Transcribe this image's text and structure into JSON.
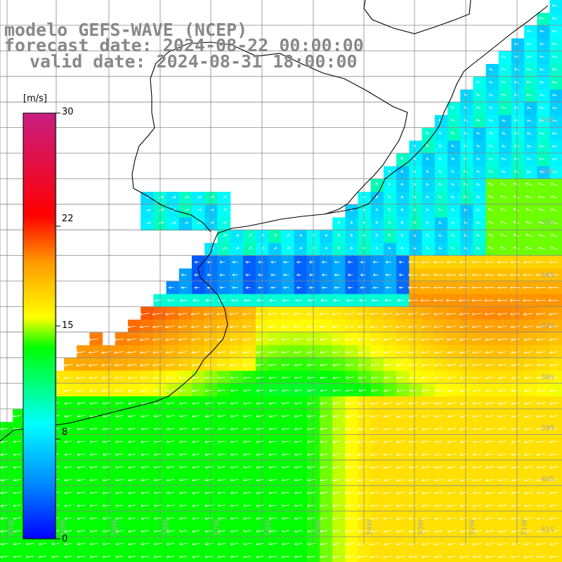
{
  "titles": {
    "line1": "modelo GEFS-WAVE (NCEP)",
    "line2": "forecast date: 2024-08-22 00:00:00",
    "line3": "valid date: 2024-08-31 18:00:00"
  },
  "colorbar": {
    "units": "[m/s]",
    "min": 0,
    "max": 30,
    "ticks": [
      "30",
      "22",
      "15",
      "8",
      "0"
    ],
    "colors": [
      "#c81e82",
      "#ff0000",
      "#ff8c00",
      "#ffff00",
      "#00ff00",
      "#00ffff",
      "#0080ff",
      "#0000ff"
    ]
  },
  "lat_labels": [
    "33S",
    "34S",
    "35S",
    "36S",
    "37S",
    "38S",
    "39S",
    "40S",
    "41S"
  ],
  "lon_labels": [
    "61W",
    "60W",
    "59W",
    "58W",
    "57W",
    "56W",
    "55W",
    "54W",
    "53W",
    "52W",
    "51W"
  ],
  "map_data": {
    "type": "wind-speed-vector-map",
    "variable": "wind speed",
    "units": "m/s",
    "colorbar_range": [
      0,
      30
    ],
    "region": "Rio de la Plata / SW Atlantic",
    "latitude_range": [
      "41S",
      "33S"
    ],
    "longitude_range": [
      "61W",
      "51W"
    ],
    "colors": {
      "land": "#ffffff",
      "coastline": "#000000",
      "grid": "#888888",
      "vectors": "#ffffff",
      "title": "#888888"
    }
  }
}
